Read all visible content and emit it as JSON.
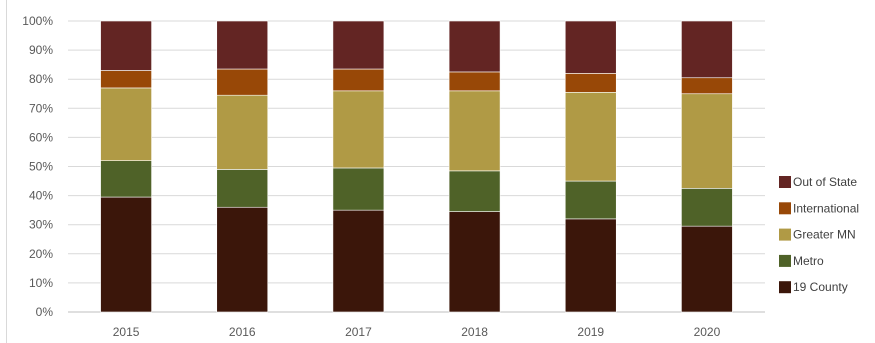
{
  "chart_data": {
    "type": "bar",
    "stacked": true,
    "percent_stacked": true,
    "categories": [
      "2015",
      "2016",
      "2017",
      "2018",
      "2019",
      "2020"
    ],
    "series": [
      {
        "name": "19 County",
        "color": "#3b160a",
        "values": [
          39.5,
          36.0,
          35.0,
          34.5,
          32.0,
          29.5
        ]
      },
      {
        "name": "Metro",
        "color": "#4f6228",
        "values": [
          12.5,
          13.0,
          14.5,
          14.0,
          13.0,
          13.0
        ]
      },
      {
        "name": "Greater MN",
        "color": "#b09a45",
        "values": [
          25.0,
          25.5,
          26.5,
          27.5,
          30.5,
          32.5
        ]
      },
      {
        "name": "International",
        "color": "#984807",
        "values": [
          6.0,
          9.0,
          7.5,
          6.5,
          6.5,
          5.5
        ]
      },
      {
        "name": "Out of State",
        "color": "#632523",
        "values": [
          17.0,
          16.5,
          16.5,
          17.5,
          18.0,
          19.5
        ]
      }
    ],
    "y_ticks": [
      "0%",
      "10%",
      "20%",
      "30%",
      "40%",
      "50%",
      "60%",
      "70%",
      "80%",
      "90%",
      "100%"
    ],
    "ylim": [
      0,
      100
    ],
    "grid": true,
    "legend": {
      "placement": "right",
      "order": [
        "Out of State",
        "International",
        "Greater MN",
        "Metro",
        "19 County"
      ]
    }
  }
}
